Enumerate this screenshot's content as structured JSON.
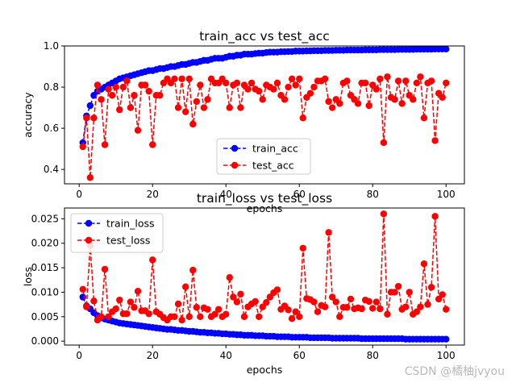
{
  "watermark": "CSDN @橘柚jvyou",
  "chart_data": [
    {
      "type": "line",
      "title": "train_acc vs test_acc",
      "xlabel": "epochs",
      "ylabel": "accuracy",
      "xlim": [
        -4,
        105
      ],
      "ylim": [
        0.33,
        1.0
      ],
      "xticks": [
        0,
        20,
        40,
        60,
        80,
        100
      ],
      "yticks": [
        0.4,
        0.6,
        0.8,
        1.0
      ],
      "xtick_labels": [
        "0",
        "20",
        "40",
        "60",
        "80",
        "100"
      ],
      "ytick_labels": [
        "0.4",
        "0.6",
        "0.8",
        "1.0"
      ],
      "grid": false,
      "legend_position": "lower-center",
      "x": [
        1,
        2,
        3,
        4,
        5,
        6,
        7,
        8,
        9,
        10,
        11,
        12,
        13,
        14,
        15,
        16,
        17,
        18,
        19,
        20,
        21,
        22,
        23,
        24,
        25,
        26,
        27,
        28,
        29,
        30,
        31,
        32,
        33,
        34,
        35,
        36,
        37,
        38,
        39,
        40,
        41,
        42,
        43,
        44,
        45,
        46,
        47,
        48,
        49,
        50,
        51,
        52,
        53,
        54,
        55,
        56,
        57,
        58,
        59,
        60,
        61,
        62,
        63,
        64,
        65,
        66,
        67,
        68,
        69,
        70,
        71,
        72,
        73,
        74,
        75,
        76,
        77,
        78,
        79,
        80,
        81,
        82,
        83,
        84,
        85,
        86,
        87,
        88,
        89,
        90,
        91,
        92,
        93,
        94,
        95,
        96,
        97,
        98,
        99,
        100
      ],
      "series": [
        {
          "name": "train_acc",
          "color": "#0000ff",
          "linestyle": "dashed",
          "marker": "circle",
          "values": [
            0.53,
            0.66,
            0.71,
            0.76,
            0.78,
            0.79,
            0.8,
            0.81,
            0.82,
            0.83,
            0.84,
            0.845,
            0.85,
            0.855,
            0.86,
            0.865,
            0.87,
            0.875,
            0.88,
            0.88,
            0.885,
            0.89,
            0.89,
            0.895,
            0.9,
            0.9,
            0.905,
            0.91,
            0.91,
            0.915,
            0.92,
            0.92,
            0.925,
            0.93,
            0.93,
            0.935,
            0.94,
            0.94,
            0.94,
            0.945,
            0.95,
            0.95,
            0.955,
            0.955,
            0.96,
            0.96,
            0.96,
            0.963,
            0.965,
            0.965,
            0.968,
            0.97,
            0.97,
            0.97,
            0.972,
            0.972,
            0.973,
            0.973,
            0.975,
            0.975,
            0.975,
            0.976,
            0.976,
            0.977,
            0.977,
            0.977,
            0.978,
            0.978,
            0.978,
            0.979,
            0.979,
            0.979,
            0.98,
            0.98,
            0.98,
            0.98,
            0.98,
            0.981,
            0.981,
            0.981,
            0.981,
            0.982,
            0.982,
            0.982,
            0.982,
            0.982,
            0.983,
            0.983,
            0.983,
            0.983,
            0.983,
            0.984,
            0.984,
            0.984,
            0.984,
            0.984,
            0.985,
            0.985,
            0.985,
            0.985
          ]
        },
        {
          "name": "test_acc",
          "color": "#ff0000",
          "linestyle": "dashed",
          "marker": "circle",
          "values": [
            0.51,
            0.65,
            0.36,
            0.65,
            0.81,
            0.74,
            0.52,
            0.79,
            0.76,
            0.8,
            0.69,
            0.8,
            0.83,
            0.7,
            0.76,
            0.59,
            0.81,
            0.81,
            0.78,
            0.52,
            0.76,
            0.76,
            0.82,
            0.84,
            0.82,
            0.84,
            0.7,
            0.84,
            0.68,
            0.84,
            0.62,
            0.73,
            0.81,
            0.7,
            0.74,
            0.84,
            0.82,
            0.82,
            0.84,
            0.82,
            0.7,
            0.81,
            0.82,
            0.7,
            0.81,
            0.79,
            0.82,
            0.79,
            0.78,
            0.74,
            0.81,
            0.8,
            0.79,
            0.82,
            0.76,
            0.74,
            0.8,
            0.84,
            0.81,
            0.84,
            0.65,
            0.75,
            0.77,
            0.8,
            0.83,
            0.83,
            0.84,
            0.73,
            0.7,
            0.74,
            0.72,
            0.82,
            0.83,
            0.76,
            0.74,
            0.72,
            0.82,
            0.82,
            0.71,
            0.81,
            0.79,
            0.84,
            0.53,
            0.85,
            0.75,
            0.74,
            0.83,
            0.72,
            0.83,
            0.76,
            0.74,
            0.82,
            0.85,
            0.65,
            0.82,
            0.83,
            0.54,
            0.77,
            0.75,
            0.82
          ]
        }
      ]
    },
    {
      "type": "line",
      "title": "train_loss vs test_loss",
      "xlabel": "epochs",
      "ylabel": "loss",
      "xlim": [
        -4,
        105
      ],
      "ylim": [
        -0.0008,
        0.0272
      ],
      "xticks": [
        0,
        20,
        40,
        60,
        80,
        100
      ],
      "yticks": [
        0,
        0.005,
        0.01,
        0.015,
        0.02,
        0.025
      ],
      "xtick_labels": [
        "0",
        "20",
        "40",
        "60",
        "80",
        "100"
      ],
      "ytick_labels": [
        "0.000",
        "0.005",
        "0.010",
        "0.015",
        "0.020",
        "0.025"
      ],
      "grid": false,
      "legend_position": "upper-left",
      "x": [
        1,
        2,
        3,
        4,
        5,
        6,
        7,
        8,
        9,
        10,
        11,
        12,
        13,
        14,
        15,
        16,
        17,
        18,
        19,
        20,
        21,
        22,
        23,
        24,
        25,
        26,
        27,
        28,
        29,
        30,
        31,
        32,
        33,
        34,
        35,
        36,
        37,
        38,
        39,
        40,
        41,
        42,
        43,
        44,
        45,
        46,
        47,
        48,
        49,
        50,
        51,
        52,
        53,
        54,
        55,
        56,
        57,
        58,
        59,
        60,
        61,
        62,
        63,
        64,
        65,
        66,
        67,
        68,
        69,
        70,
        71,
        72,
        73,
        74,
        75,
        76,
        77,
        78,
        79,
        80,
        81,
        82,
        83,
        84,
        85,
        86,
        87,
        88,
        89,
        90,
        91,
        92,
        93,
        94,
        95,
        96,
        97,
        98,
        99,
        100
      ],
      "series": [
        {
          "name": "train_loss",
          "color": "#0000ff",
          "linestyle": "dashed",
          "marker": "circle",
          "values": [
            0.009,
            0.0072,
            0.0066,
            0.0058,
            0.0052,
            0.0048,
            0.0045,
            0.0043,
            0.0041,
            0.0039,
            0.0037,
            0.0036,
            0.0035,
            0.0034,
            0.0033,
            0.0032,
            0.0031,
            0.003,
            0.0029,
            0.0028,
            0.0027,
            0.0026,
            0.0025,
            0.0024,
            0.0024,
            0.0023,
            0.0022,
            0.0022,
            0.0021,
            0.002,
            0.002,
            0.0019,
            0.0018,
            0.0018,
            0.0017,
            0.0017,
            0.0016,
            0.0016,
            0.0015,
            0.0015,
            0.0014,
            0.0014,
            0.0013,
            0.0013,
            0.0012,
            0.0012,
            0.0012,
            0.0011,
            0.0011,
            0.0011,
            0.001,
            0.001,
            0.001,
            0.0009,
            0.0009,
            0.0009,
            0.0009,
            0.0008,
            0.0008,
            0.0008,
            0.0008,
            0.0008,
            0.0007,
            0.0007,
            0.0007,
            0.0007,
            0.0007,
            0.0007,
            0.0006,
            0.0006,
            0.0006,
            0.0006,
            0.0006,
            0.0006,
            0.0006,
            0.0006,
            0.0005,
            0.0005,
            0.0005,
            0.0005,
            0.0005,
            0.0005,
            0.0005,
            0.0005,
            0.0005,
            0.0005,
            0.0005,
            0.0005,
            0.0004,
            0.0004,
            0.0004,
            0.0004,
            0.0004,
            0.0004,
            0.0004,
            0.0004,
            0.0004,
            0.0004,
            0.0004,
            0.0004
          ]
        },
        {
          "name": "test_loss",
          "color": "#ff0000",
          "linestyle": "dashed",
          "marker": "circle",
          "values": [
            0.0106,
            0.007,
            0.0195,
            0.0082,
            0.0043,
            0.005,
            0.0147,
            0.005,
            0.006,
            0.0066,
            0.0084,
            0.0056,
            0.0056,
            0.008,
            0.0069,
            0.0102,
            0.0062,
            0.0062,
            0.0056,
            0.0166,
            0.006,
            0.0055,
            0.0048,
            0.0043,
            0.005,
            0.005,
            0.0076,
            0.0043,
            0.0111,
            0.005,
            0.0145,
            0.0069,
            0.005,
            0.0068,
            0.0065,
            0.005,
            0.0055,
            0.0065,
            0.005,
            0.0055,
            0.013,
            0.009,
            0.008,
            0.0096,
            0.005,
            0.007,
            0.0076,
            0.0081,
            0.005,
            0.007,
            0.0079,
            0.009,
            0.0099,
            0.0105,
            0.0065,
            0.0072,
            0.0064,
            0.0046,
            0.006,
            0.005,
            0.019,
            0.0087,
            0.0085,
            0.008,
            0.006,
            0.0073,
            0.007,
            0.0222,
            0.009,
            0.008,
            0.005,
            0.0069,
            0.0069,
            0.0086,
            0.0066,
            0.0068,
            0.0066,
            0.0084,
            0.0081,
            0.0067,
            0.008,
            0.0066,
            0.026,
            0.0055,
            0.01,
            0.01,
            0.0112,
            0.0065,
            0.007,
            0.01,
            0.0055,
            0.006,
            0.007,
            0.0158,
            0.0075,
            0.011,
            0.0255,
            0.0086,
            0.0095,
            0.0065
          ]
        }
      ]
    }
  ]
}
